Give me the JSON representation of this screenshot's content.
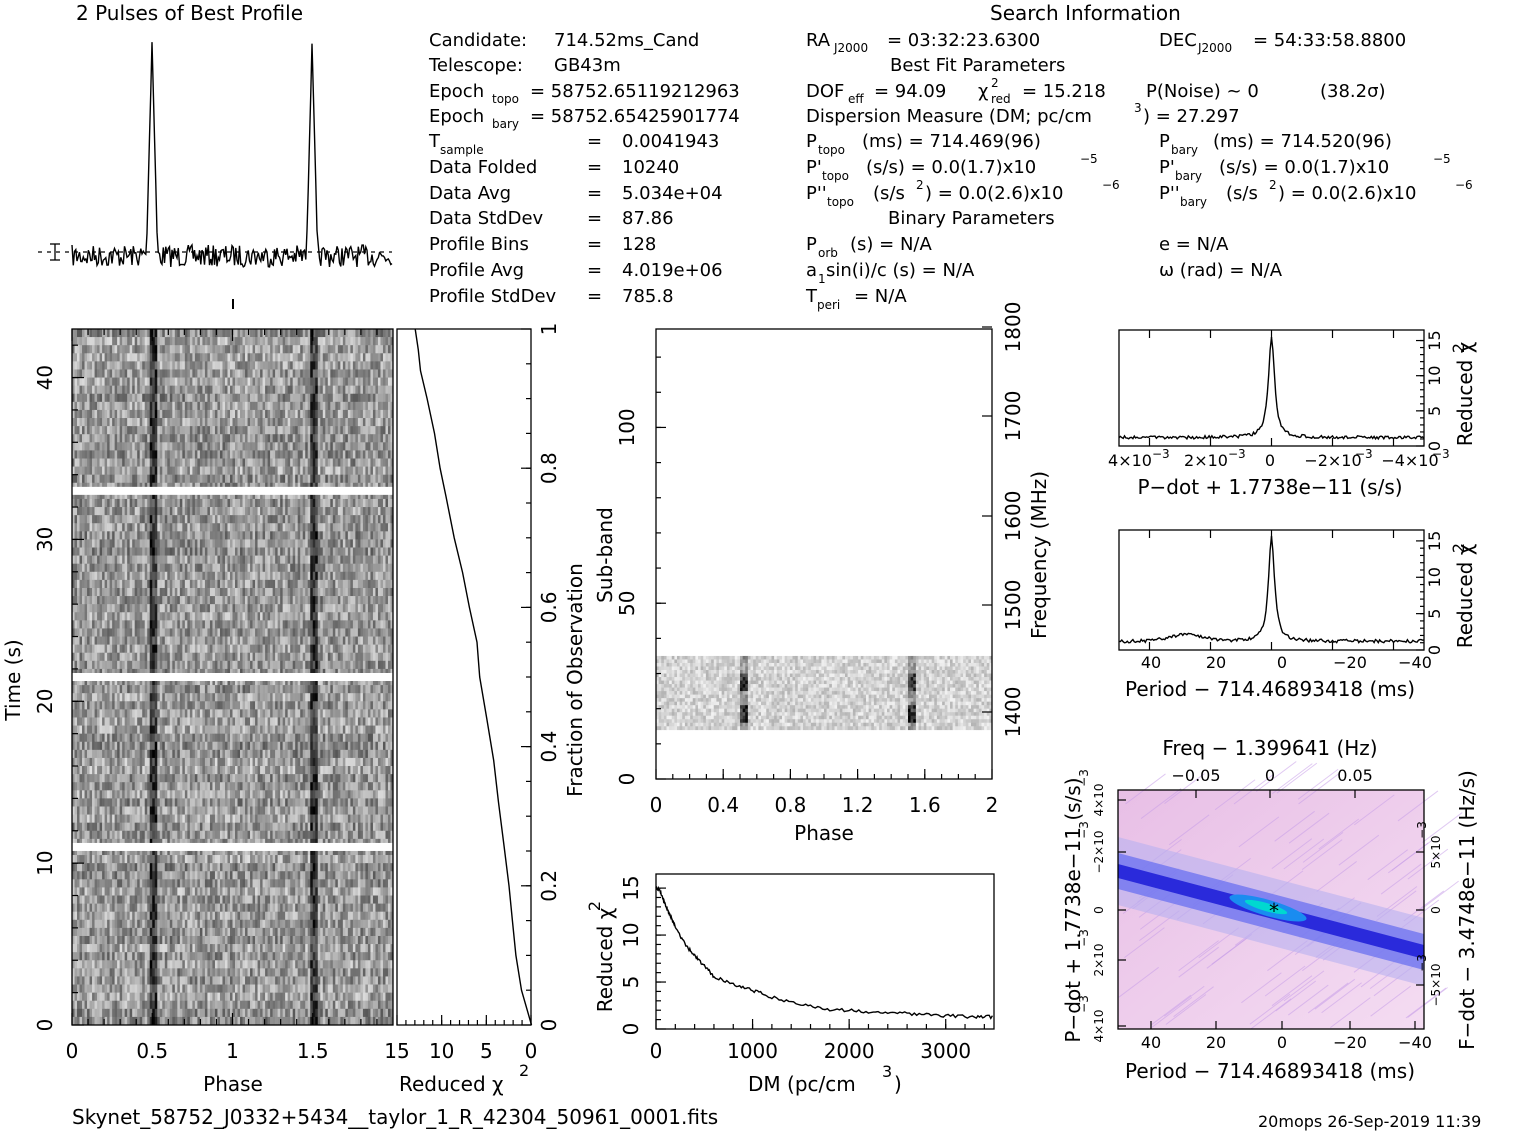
{
  "header": {
    "profile_title": "2 Pulses of Best Profile",
    "search_title": "Search Information",
    "best_fit_title": "Best Fit Parameters",
    "binary_title": "Binary Parameters"
  },
  "candidate": {
    "candidate_label": "Candidate:",
    "candidate_value": "714.52ms_Cand",
    "telescope_label": "Telescope:",
    "telescope_value": "GB43m",
    "epoch_topo_label": "Epoch",
    "epoch_topo_sub": "topo",
    "epoch_topo_value": "= 58752.65119212963",
    "epoch_bary_label": "Epoch",
    "epoch_bary_sub": "bary",
    "epoch_bary_value": "= 58752.65425901774",
    "tsample_label": "T",
    "tsample_sub": "sample",
    "tsample_value": "0.0041943",
    "data_folded_label": "Data Folded",
    "data_folded_value": "10240",
    "data_avg_label": "Data Avg",
    "data_avg_value": "5.034e+04",
    "data_stddev_label": "Data StdDev",
    "data_stddev_value": "87.86",
    "profile_bins_label": "Profile Bins",
    "profile_bins_value": "128",
    "profile_avg_label": "Profile Avg",
    "profile_avg_value": "4.019e+06",
    "profile_stddev_label": "Profile StdDev",
    "profile_stddev_value": "785.8",
    "eq": "="
  },
  "search": {
    "ra": "RA",
    "ra_sub": "J2000",
    "ra_value": "= 03:32:23.6300",
    "dec": "DEC",
    "dec_sub": "J2000",
    "dec_value": "= 54:33:58.8800",
    "dof": "DOF",
    "dof_sub": "eff",
    "dof_value": "= 94.09",
    "chi": "χ",
    "chi_sup": "2",
    "chi_sub": "red",
    "chi_value": "= 15.218",
    "pnoise": "P(Noise) ~ 0",
    "sigma": "(38.2σ)",
    "dm_line": "Dispersion Measure (DM; pc/cm",
    "dm_sup": "3",
    "dm_value": ") = 27.297",
    "ptopo": "P",
    "ptopo_sub": "topo",
    "ptopo_value": "(ms) =  714.469(96)",
    "pbary": "P",
    "pbary_sub": "bary",
    "pbary_value": "(ms) =  714.520(96)",
    "pdtopo": "P'",
    "pdtopo_sub": "topo",
    "pdtopo_value": "(s/s) = 0.0(1.7)x10",
    "pdtopo_exp": "−5",
    "pdbary": "P'",
    "pdbary_sub": "bary",
    "pdbary_value": "(s/s) = 0.0(1.7)x10",
    "pdbary_exp": "−5",
    "pddtopo": "P''",
    "pddtopo_sub": "topo",
    "pddtopo_value": "(s/s",
    "pddtopo_value2": ") = 0.0(2.6)x10",
    "pddtopo_exp": "−6",
    "pddbary": "P''",
    "pddbary_sub": "bary",
    "pddbary_value": "(s/s",
    "pddbary_value2": ") = 0.0(2.6)x10",
    "pddbary_exp": "−6",
    "sq": "2",
    "porb": "P",
    "porb_sub": "orb",
    "porb_value": "(s) = N/A",
    "ecc": "e = N/A",
    "a1": "a",
    "a1_sub": "1",
    "a1_value": "sin(i)/c (s) = N/A",
    "omega": "ω (rad) = N/A",
    "tperi": "T",
    "tperi_sub": "peri",
    "tperi_value": "= N/A"
  },
  "footer": {
    "filename": "Skynet_58752_J0332+5434__taylor_1_R_42304_50961_0001.fits",
    "stamp": "20mops 26-Sep-2019 11:39"
  },
  "chart_data": [
    {
      "type": "line",
      "name": "profile",
      "title": "2 Pulses of Best Profile",
      "x": "phase 0-2",
      "peaks_at_phase": [
        0.5,
        1.5
      ]
    },
    {
      "type": "heatmap",
      "name": "time-phase",
      "xlabel": "Phase",
      "ylabel": "Time (s)",
      "xlim": [
        0,
        2
      ],
      "ylim": [
        0,
        43
      ],
      "xticks": [
        "0",
        "0.5",
        "1",
        "1.5"
      ],
      "yticks": [
        "0",
        "10",
        "20",
        "30",
        "40"
      ],
      "pulse_phases": [
        0.5,
        1.5
      ],
      "gaps_at_time": [
        11,
        21.5,
        33
      ]
    },
    {
      "type": "line",
      "name": "time-chi2",
      "xlabel": "Reduced χ",
      "xlabel_sup": "2",
      "xlim": [
        15,
        0
      ],
      "xticks": [
        "15",
        "10",
        "5",
        "0"
      ],
      "right_label": "Fraction of Observation",
      "right_ticks": [
        "0",
        "0.2",
        "0.4",
        "0.6",
        "0.8",
        "1"
      ],
      "points": [
        [
          0.0,
          0
        ],
        [
          0.3,
          0.02
        ],
        [
          1.0,
          0.05
        ],
        [
          1.6,
          0.1
        ],
        [
          2.1,
          0.15
        ],
        [
          2.6,
          0.2
        ],
        [
          3.1,
          0.26
        ],
        [
          3.6,
          0.32
        ],
        [
          4.2,
          0.38
        ],
        [
          4.9,
          0.44
        ],
        [
          5.6,
          0.5
        ],
        [
          6.1,
          0.55
        ],
        [
          6.9,
          0.6
        ],
        [
          7.6,
          0.65
        ],
        [
          8.5,
          0.7
        ],
        [
          9.4,
          0.76
        ],
        [
          10.2,
          0.8
        ],
        [
          10.9,
          0.85
        ],
        [
          11.7,
          0.9
        ],
        [
          12.4,
          0.94
        ],
        [
          12.6,
          0.97
        ],
        [
          13.0,
          1.0
        ]
      ]
    },
    {
      "type": "heatmap",
      "name": "subband-phase",
      "xlabel": "Phase",
      "ylabel": "Sub-band",
      "right_label": "Frequency (MHz)",
      "xlim": [
        0,
        2
      ],
      "ylim": [
        0,
        128
      ],
      "xticks": [
        "0",
        "0.4",
        "0.8",
        "1.2",
        "1.6",
        "2"
      ],
      "yticks": [
        "0",
        "50",
        "100"
      ],
      "right_ticks": [
        "1400",
        "1500",
        "1600",
        "1700",
        "1800"
      ],
      "filled_subbands": [
        14,
        35
      ],
      "pulse_phases": [
        0.5,
        1.5
      ]
    },
    {
      "type": "line",
      "name": "dm-chi2",
      "xlabel": "DM (pc/cm",
      "xlabel_sup": "3",
      "xlabel_end": ")",
      "ylabel": "Reduced χ",
      "ylabel_sup": "2",
      "xlim": [
        0,
        3500
      ],
      "ylim": [
        0,
        16
      ],
      "xticks": [
        "0",
        "1000",
        "2000",
        "3000"
      ],
      "yticks": [
        "0",
        "5",
        "10",
        "15"
      ],
      "points": [
        [
          0,
          15.2
        ],
        [
          50,
          14.5
        ],
        [
          100,
          13.2
        ],
        [
          150,
          12.0
        ],
        [
          200,
          10.9
        ],
        [
          300,
          9.0
        ],
        [
          400,
          7.8
        ],
        [
          500,
          6.7
        ],
        [
          600,
          5.6
        ],
        [
          800,
          4.8
        ],
        [
          1000,
          4.1
        ],
        [
          1200,
          3.4
        ],
        [
          1500,
          2.6
        ],
        [
          1800,
          2.1
        ],
        [
          2100,
          1.9
        ],
        [
          2400,
          1.8
        ],
        [
          2700,
          1.6
        ],
        [
          3000,
          1.4
        ],
        [
          3300,
          1.3
        ],
        [
          3500,
          1.3
        ]
      ]
    },
    {
      "type": "line",
      "name": "pdot-chi2",
      "xlabel": "P−dot + 1.7738e−11 (s/s)",
      "ylabel": "Reduced χ",
      "ylabel_sup": "2",
      "xticks": [
        "4×10",
        "2×10",
        "0",
        "−2×10",
        "−4×10"
      ],
      "xtick_exp": "−3",
      "yticks": [
        "0",
        "5",
        "10",
        "15"
      ],
      "peak": 15.5
    },
    {
      "type": "line",
      "name": "period-chi2",
      "xlabel": "Period − 714.46893418 (ms)",
      "ylabel": "Reduced χ",
      "ylabel_sup": "2",
      "xticks": [
        "40",
        "20",
        "0",
        "−20",
        "−40"
      ],
      "yticks": [
        "0",
        "5",
        "10",
        "15"
      ],
      "peak": 15.5
    },
    {
      "type": "heatmap",
      "name": "period-pdot",
      "xlabel": "Period − 714.46893418 (ms)",
      "top_label": "Freq − 1.399641 (Hz)",
      "ylabel": "P−dot + 1.7738e−11 (s/s)",
      "right_label": "F−dot − 3.4748e−11 (Hz/s)",
      "xticks": [
        "40",
        "20",
        "0",
        "−20",
        "−40"
      ],
      "top_ticks": [
        "−0.05",
        "0",
        "0.05"
      ],
      "left_ticks": [
        "4×10",
        "2×10",
        "0",
        "−2×10",
        "4×10"
      ],
      "left_tick_exp": "−3",
      "right_ticks": [
        "5×10",
        "0",
        "−5×10"
      ],
      "right_tick_exp": "−3",
      "colors": [
        "#f4d8f2",
        "#2030e0",
        "#00d8d0"
      ]
    }
  ]
}
